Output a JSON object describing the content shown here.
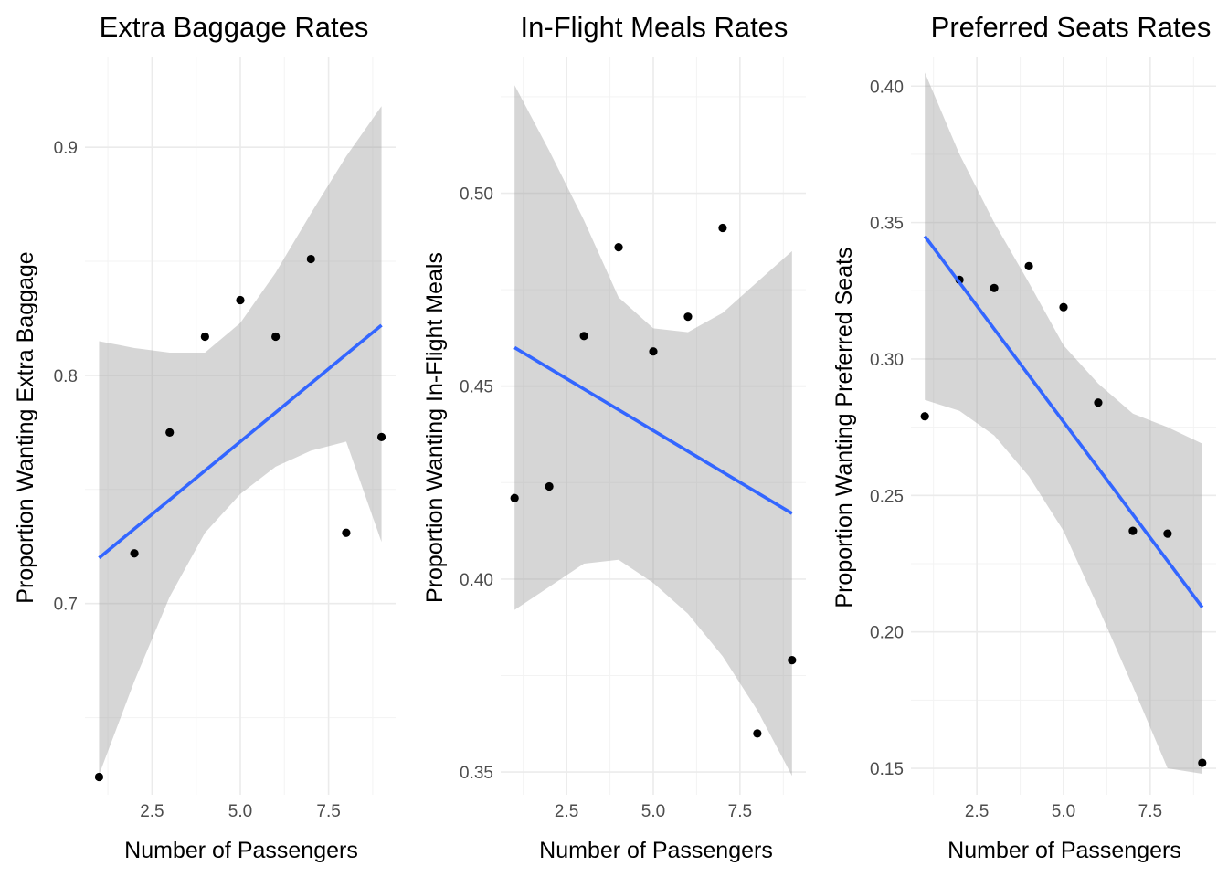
{
  "chart_data": [
    {
      "type": "scatter",
      "title": "Extra Baggage Rates",
      "xlabel": "Number of Passengers",
      "ylabel": "Proportion Wanting Extra Baggage",
      "xlim": [
        0.6,
        9.4
      ],
      "ylim": [
        0.6162,
        0.9397
      ],
      "xticks": [
        2.5,
        5.0,
        7.5
      ],
      "xtick_labels": [
        "2.5",
        "5.0",
        "7.5"
      ],
      "yticks": [
        0.7,
        0.8,
        0.9
      ],
      "ytick_labels": [
        "0.7",
        "0.8",
        "0.9"
      ],
      "grid": true,
      "points": {
        "x": [
          1,
          2,
          3,
          4,
          5,
          6,
          7,
          8,
          9
        ],
        "y": [
          0.624,
          0.722,
          0.775,
          0.817,
          0.833,
          0.817,
          0.851,
          0.731,
          0.773
        ]
      },
      "fit": {
        "method": "lm",
        "x": [
          1,
          9
        ],
        "y": [
          0.72,
          0.822
        ],
        "ci_x": [
          1,
          2,
          3,
          4,
          5,
          6,
          7,
          8,
          9
        ],
        "ci_lower": [
          0.625,
          0.666,
          0.703,
          0.731,
          0.748,
          0.76,
          0.767,
          0.771,
          0.727
        ],
        "ci_upper": [
          0.815,
          0.812,
          0.81,
          0.81,
          0.823,
          0.845,
          0.871,
          0.896,
          0.918
        ]
      },
      "colors": {
        "points": "#000000",
        "line": "#3366ff",
        "ribbon": "#999999"
      }
    },
    {
      "type": "scatter",
      "title": "In-Flight Meals Rates",
      "xlabel": "Number of Passengers",
      "ylabel": "Proportion Wanting In-Flight Meals",
      "xlim": [
        0.6,
        9.4
      ],
      "ylim": [
        0.3441,
        0.5354
      ],
      "xticks": [
        2.5,
        5.0,
        7.5
      ],
      "xtick_labels": [
        "2.5",
        "5.0",
        "7.5"
      ],
      "yticks": [
        0.35,
        0.4,
        0.45,
        0.5
      ],
      "ytick_labels": [
        "0.35",
        "0.40",
        "0.45",
        "0.50"
      ],
      "grid": true,
      "points": {
        "x": [
          1,
          2,
          3,
          4,
          5,
          6,
          7,
          8,
          9
        ],
        "y": [
          0.421,
          0.424,
          0.463,
          0.486,
          0.459,
          0.468,
          0.491,
          0.36,
          0.379
        ]
      },
      "fit": {
        "method": "lm",
        "x": [
          1,
          9
        ],
        "y": [
          0.46,
          0.417
        ],
        "ci_x": [
          1,
          2,
          3,
          4,
          5,
          6,
          7,
          8,
          9
        ],
        "ci_lower": [
          0.392,
          0.398,
          0.404,
          0.405,
          0.399,
          0.391,
          0.38,
          0.366,
          0.349
        ],
        "ci_upper": [
          0.528,
          0.511,
          0.493,
          0.473,
          0.465,
          0.464,
          0.469,
          0.477,
          0.485
        ]
      },
      "colors": {
        "points": "#000000",
        "line": "#3366ff",
        "ribbon": "#999999"
      }
    },
    {
      "type": "scatter",
      "title": "Preferred Seats Rates",
      "xlabel": "Number of Passengers",
      "ylabel": "Proportion Wanting Preferred Seats",
      "xlim": [
        0.6,
        9.4
      ],
      "ylim": [
        0.1403,
        0.4108
      ],
      "xticks": [
        2.5,
        5.0,
        7.5
      ],
      "xtick_labels": [
        "2.5",
        "5.0",
        "7.5"
      ],
      "yticks": [
        0.15,
        0.2,
        0.25,
        0.3,
        0.35,
        0.4
      ],
      "ytick_labels": [
        "0.15",
        "0.20",
        "0.25",
        "0.30",
        "0.35",
        "0.40"
      ],
      "grid": true,
      "points": {
        "x": [
          1,
          2,
          3,
          4,
          5,
          6,
          7,
          8,
          9
        ],
        "y": [
          0.279,
          0.329,
          0.326,
          0.334,
          0.319,
          0.284,
          0.237,
          0.236,
          0.152
        ]
      },
      "fit": {
        "method": "lm",
        "x": [
          1,
          9
        ],
        "y": [
          0.345,
          0.209
        ],
        "ci_x": [
          1,
          2,
          3,
          4,
          5,
          6,
          7,
          8,
          9
        ],
        "ci_lower": [
          0.285,
          0.281,
          0.272,
          0.257,
          0.237,
          0.209,
          0.18,
          0.15,
          0.148
        ],
        "ci_upper": [
          0.405,
          0.375,
          0.35,
          0.328,
          0.305,
          0.291,
          0.28,
          0.275,
          0.269
        ]
      },
      "colors": {
        "points": "#000000",
        "line": "#3366ff",
        "ribbon": "#999999"
      }
    }
  ]
}
